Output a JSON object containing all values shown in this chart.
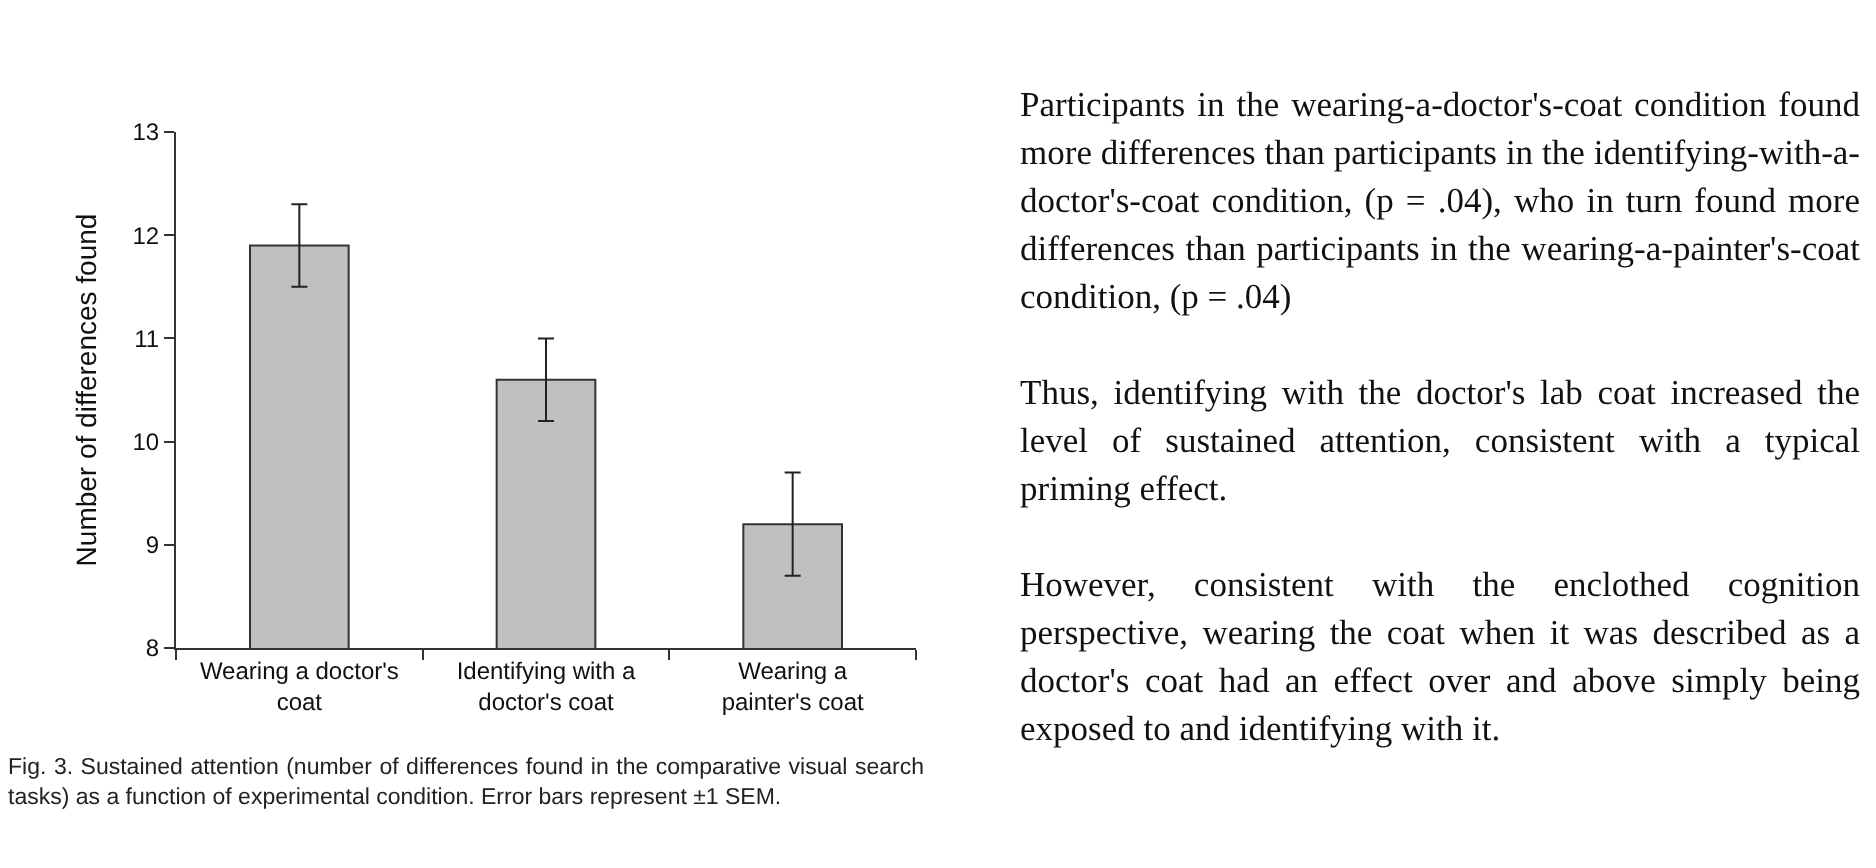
{
  "chart_data": {
    "type": "bar",
    "ylabel": "Number of differences found",
    "categories": [
      "Wearing a doctor's coat",
      "Identifying with a doctor's coat",
      "Wearing a painter's coat"
    ],
    "values": [
      11.9,
      10.6,
      9.2
    ],
    "errors": [
      0.4,
      0.4,
      0.5
    ],
    "color": "#c0c0c0",
    "ylim": [
      8,
      13
    ],
    "yticks": [
      8,
      9,
      10,
      11,
      12,
      13
    ],
    "grid": false,
    "annotations": [
      "Fig. 3. Sustained attention (number of differences found in the comparative visual search tasks) as a function of experimental condition. Error bars represent ±1 SEM.",
      "Participants in the wearing-a-doctor's-coat condition found more differences than participants in the identifying-with-a-doctor's-coat condition, (p = .04), who in turn found more differences than participants in the wearing-a-painter's-coat condition, (p = .04)",
      "Thus, identifying with the doctor's lab coat increased the level of sustained attention, consistent with a typical priming effect.",
      "However, consistent with the enclothed cognition perspective, wearing the coat when it was described as a doctor's coat had an effect over and above simply being exposed to and identifying with it."
    ]
  }
}
